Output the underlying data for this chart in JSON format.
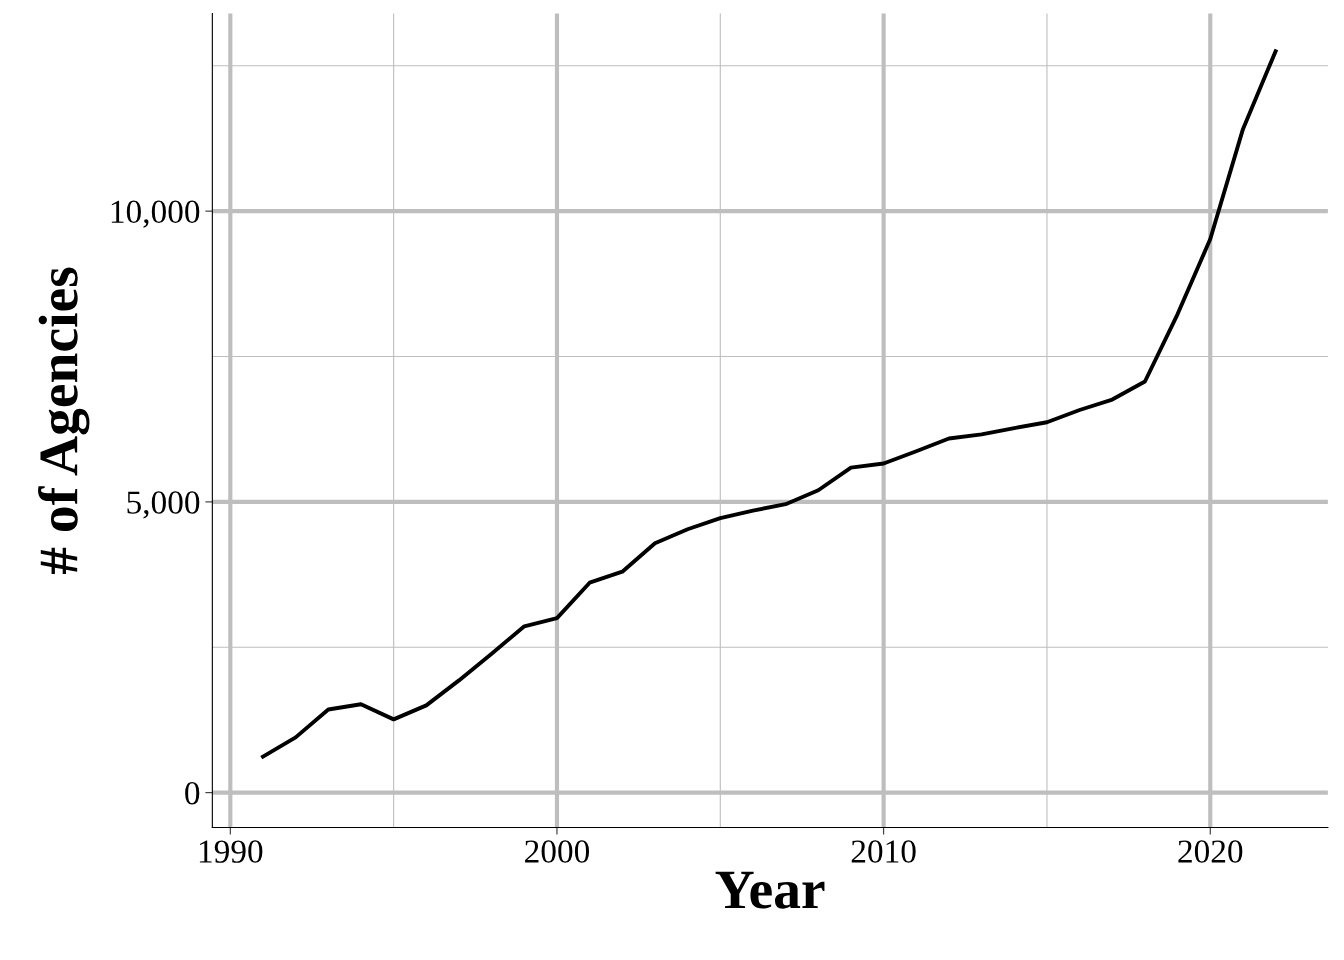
{
  "chart_data": {
    "type": "line",
    "xlabel": "Year",
    "ylabel": "# of Agencies",
    "x": [
      1991,
      1992,
      1993,
      1994,
      1995,
      1996,
      1997,
      1998,
      1999,
      2000,
      2001,
      2002,
      2003,
      2004,
      2005,
      2006,
      2007,
      2008,
      2009,
      2010,
      2011,
      2012,
      2013,
      2014,
      2015,
      2016,
      2017,
      2018,
      2019,
      2020,
      2021,
      2022
    ],
    "series": [
      {
        "color": "#000000",
        "values": [
          620,
          950,
          1430,
          1520,
          1260,
          1500,
          1930,
          2390,
          2860,
          3000,
          3610,
          3800,
          4290,
          4530,
          4720,
          4850,
          4960,
          5200,
          5590,
          5660,
          5870,
          6090,
          6160,
          6270,
          6370,
          6580,
          6760,
          7070,
          8230,
          9520,
          11410,
          12750
        ]
      }
    ],
    "xlim": [
      1989.45,
      2023.6
    ],
    "ylim": [
      -600,
      13400
    ],
    "xticks": [
      1990,
      {
        "value": 1995,
        "label": null
      },
      2000,
      {
        "value": 2005,
        "label": null
      },
      2010,
      {
        "value": 2015,
        "label": null
      },
      2020
    ],
    "yticks": [
      {
        "value": 0,
        "label": "0"
      },
      {
        "value": 2500,
        "label": null
      },
      {
        "value": 5000,
        "label": "5,000"
      },
      {
        "value": 7500,
        "label": null
      },
      {
        "value": 10000,
        "label": "10,000"
      },
      {
        "value": 12500,
        "label": null
      }
    ],
    "grid": true,
    "marker": "none",
    "line_style": "solid",
    "legend": false
  }
}
